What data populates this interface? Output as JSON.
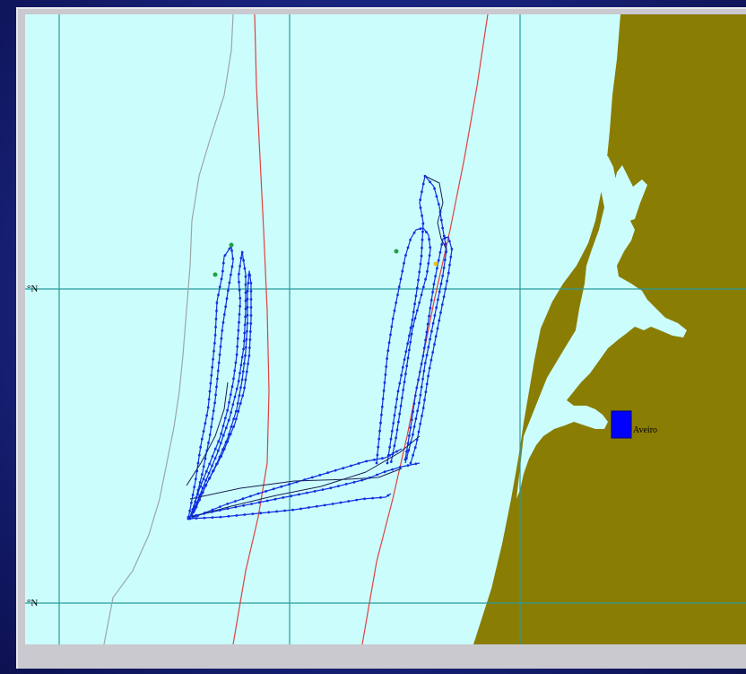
{
  "map": {
    "colors": {
      "sea": "#ccfdfd",
      "land": "#8a7d04",
      "grid": "#2a9a9a",
      "red_line": "#e04040",
      "isobath": "#9aa6a6",
      "track": "#1030e0",
      "track_dark": "#1a2050",
      "marker": "#0000ff"
    },
    "lat_labels": [
      {
        "text": "°N"
      },
      {
        "text": "°N"
      }
    ],
    "place": {
      "name": "Aveiro",
      "icon": "city-square-marker"
    }
  }
}
